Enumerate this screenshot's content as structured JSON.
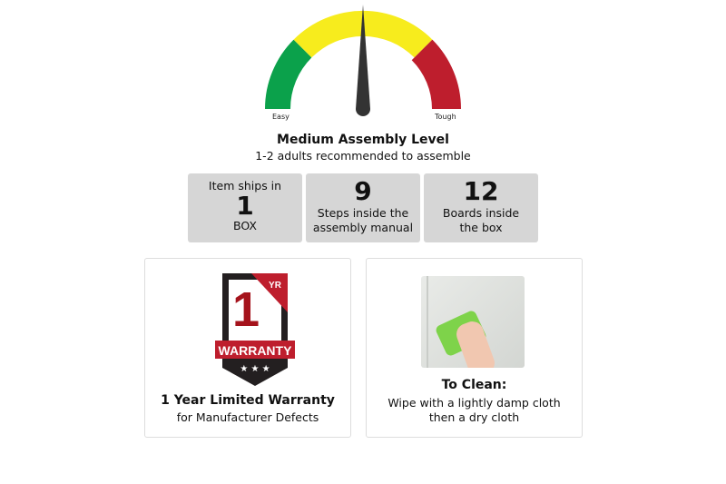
{
  "gauge": {
    "min_label": "Easy",
    "max_label": "Tough",
    "level": "medium",
    "colors": {
      "easy": "#0ba14b",
      "medium": "#f7ec1d",
      "tough": "#be1e2d",
      "needle": "#333333"
    }
  },
  "heading": {
    "title": "Medium Assembly Level",
    "subtitle": "1-2 adults recommended to assemble"
  },
  "stats": [
    {
      "top": "Item ships in",
      "value": "1",
      "bottom": "BOX"
    },
    {
      "value": "9",
      "bottom": "Steps inside the assembly manual"
    },
    {
      "value": "12",
      "bottom": "Boards inside the box"
    }
  ],
  "warranty": {
    "badge_number": "1",
    "badge_unit": "YR",
    "badge_text": "WARRANTY",
    "title": "1 Year Limited Warranty",
    "subtitle": "for Manufacturer Defects"
  },
  "care": {
    "title": "To Clean:",
    "line1": "Wipe with a lightly damp cloth",
    "line2": "then a dry cloth"
  }
}
